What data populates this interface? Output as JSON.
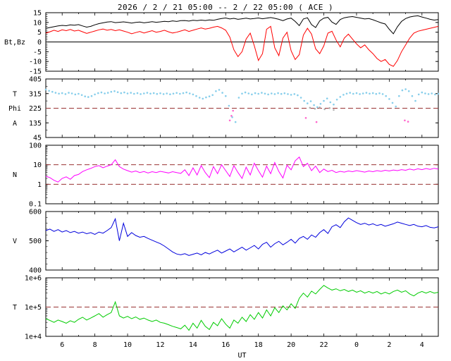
{
  "title": "2026 / 2 / 21  05:00 -- 2 / 22  05:00 ( ACE )",
  "colors": {
    "bt": "#000000",
    "bz": "#ff0000",
    "phi": "#87ceeb",
    "phi_stray": "#ff66cc",
    "phi_gray": "#b0b0b0",
    "density": "#ff00ff",
    "speed": "#0000dd",
    "temp": "#00cc00",
    "dash": "#993333",
    "axis": "#000000"
  },
  "xaxis": {
    "label": "UT",
    "range": [
      5,
      29
    ],
    "ticks": [
      {
        "h": 6,
        "t": "6"
      },
      {
        "h": 8,
        "t": "8"
      },
      {
        "h": 10,
        "t": "10"
      },
      {
        "h": 12,
        "t": "12"
      },
      {
        "h": 14,
        "t": "14"
      },
      {
        "h": 16,
        "t": "16"
      },
      {
        "h": 18,
        "t": "18"
      },
      {
        "h": 20,
        "t": "20"
      },
      {
        "h": 22,
        "t": "22"
      },
      {
        "h": 24,
        "t": "0"
      },
      {
        "h": 26,
        "t": "2"
      },
      {
        "h": 28,
        "t": "4"
      }
    ]
  },
  "chart_data": [
    {
      "name": "bt-bz",
      "type": "line",
      "ylabel": "Bt,Bz",
      "ylim": [
        -15,
        15
      ],
      "log": false,
      "yminor": 1,
      "yticks": [
        {
          "v": 15,
          "t": "15"
        },
        {
          "v": 10,
          "t": "10"
        },
        {
          "v": 5,
          "t": "5"
        },
        {
          "v": 0,
          "t": "0"
        },
        {
          "v": -5,
          "t": "-5"
        },
        {
          "v": -10,
          "t": "-10"
        },
        {
          "v": -15,
          "t": "-15"
        }
      ],
      "captions": [
        {
          "text": "Bt,Bz",
          "v": 0
        }
      ],
      "hlines": [
        {
          "v": 0,
          "dash": false
        }
      ],
      "series": [
        {
          "name": "bt",
          "color": "bt",
          "mode": "line",
          "x0": 5,
          "dx": 0.25,
          "y": [
            7.0,
            7.4,
            7.8,
            8.2,
            8.5,
            8.3,
            8.8,
            8.6,
            8.9,
            8.2,
            7.6,
            8.0,
            8.8,
            9.4,
            9.8,
            10.2,
            10.4,
            9.9,
            10.1,
            10.3,
            10.0,
            9.7,
            10.0,
            10.2,
            9.8,
            10.1,
            10.4,
            10.1,
            10.3,
            10.6,
            10.4,
            10.8,
            10.5,
            10.9,
            11.0,
            10.7,
            11.1,
            10.9,
            11.2,
            11.0,
            11.3,
            11.1,
            11.6,
            12.0,
            12.3,
            11.8,
            12.1,
            11.6,
            11.9,
            12.2,
            11.8,
            12.0,
            12.3,
            11.9,
            12.2,
            12.5,
            12.1,
            11.6,
            10.9,
            11.8,
            12.2,
            10.5,
            8.4,
            11.8,
            12.4,
            8.9,
            7.4,
            10.8,
            12.2,
            12.6,
            10.2,
            9.0,
            11.5,
            12.4,
            12.8,
            13.0,
            12.6,
            12.2,
            11.8,
            12.0,
            11.4,
            10.6,
            9.8,
            9.2,
            6.5,
            4.2,
            7.8,
            10.5,
            12.0,
            12.8,
            13.2,
            13.4,
            12.8,
            12.2,
            11.6,
            11.2,
            11.5
          ]
        },
        {
          "name": "bz",
          "color": "bz",
          "mode": "line",
          "x0": 5,
          "dx": 0.25,
          "y": [
            4.5,
            5.2,
            6.0,
            5.4,
            6.2,
            5.8,
            6.4,
            5.6,
            6.0,
            5.2,
            4.4,
            5.0,
            5.6,
            6.2,
            6.6,
            6.0,
            6.4,
            5.8,
            6.2,
            5.6,
            5.0,
            4.2,
            4.8,
            5.4,
            4.6,
            5.2,
            5.8,
            5.0,
            5.4,
            6.0,
            5.2,
            4.6,
            5.0,
            5.6,
            6.2,
            5.4,
            6.0,
            6.6,
            7.2,
            6.6,
            7.0,
            7.6,
            8.0,
            7.2,
            6.0,
            2.5,
            -4.0,
            -7.5,
            -5.0,
            1.5,
            4.5,
            -2.0,
            -9.5,
            -6.0,
            6.5,
            8.0,
            -3.0,
            -7.0,
            2.0,
            5.0,
            -4.5,
            -9.0,
            -6.5,
            3.5,
            7.0,
            4.0,
            -3.5,
            -6.0,
            -2.0,
            4.5,
            5.5,
            1.0,
            -2.5,
            2.0,
            4.0,
            1.5,
            -1.0,
            -3.0,
            -1.5,
            -4.0,
            -6.0,
            -8.5,
            -10.0,
            -9.0,
            -11.5,
            -12.5,
            -9.5,
            -5.0,
            -1.5,
            2.0,
            4.5,
            5.5,
            6.0,
            6.5,
            7.0,
            7.5,
            8.0
          ]
        }
      ]
    },
    {
      "name": "phi",
      "type": "scatter",
      "ylabel": "Phi",
      "ylim": [
        45,
        405
      ],
      "log": false,
      "yminor": 45,
      "yticks": [
        {
          "v": 405,
          "t": "405"
        },
        {
          "v": 315,
          "t": "315"
        },
        {
          "v": 225,
          "t": "225"
        },
        {
          "v": 135,
          "t": "135"
        },
        {
          "v": 45,
          "t": "45"
        }
      ],
      "captions": [
        {
          "text": "T",
          "v": 315
        },
        {
          "text": "Phi",
          "v": 225
        },
        {
          "text": "A",
          "v": 135
        }
      ],
      "hlines": [
        {
          "v": 225,
          "dash": true
        }
      ],
      "series": [
        {
          "name": "phi-angle",
          "color": "phi",
          "mode": "dots",
          "x0": 5,
          "dx": 0.2,
          "y": [
            340,
            332,
            326,
            320,
            315,
            318,
            312,
            320,
            316,
            310,
            314,
            306,
            298,
            294,
            300,
            310,
            318,
            322,
            316,
            320,
            326,
            330,
            324,
            318,
            322,
            316,
            320,
            314,
            318,
            312,
            316,
            320,
            315,
            318,
            313,
            317,
            312,
            316,
            311,
            315,
            319,
            314,
            318,
            322,
            316,
            310,
            300,
            290,
            284,
            292,
            298,
            306,
            330,
            338,
            320,
            300,
            240,
            170,
            140,
            290,
            315,
            322,
            316,
            310,
            318,
            314,
            320,
            315,
            310,
            316,
            312,
            318,
            313,
            317,
            312,
            308,
            312,
            305,
            290,
            270,
            255,
            268,
            244,
            232,
            252,
            270,
            285,
            262,
            248,
            278,
            295,
            308,
            315,
            320,
            314,
            318,
            312,
            316,
            320,
            315,
            318,
            313,
            317,
            312,
            300,
            282,
            258,
            236,
            300,
            335,
            342,
            330,
            300,
            270,
            310,
            322,
            316,
            312,
            316,
            310,
            314
          ]
        },
        {
          "name": "phi-stray",
          "color": "phi_stray",
          "mode": "points",
          "points": [
            [
              16.25,
              150
            ],
            [
              16.35,
              178
            ],
            [
              16.45,
              210
            ],
            [
              20.9,
              165
            ],
            [
              21.55,
              140
            ],
            [
              26.95,
              150
            ],
            [
              27.15,
              142
            ]
          ]
        },
        {
          "name": "phi-gray",
          "color": "phi_gray",
          "mode": "points",
          "points": [
            [
              21.15,
              228
            ],
            [
              21.45,
              222
            ],
            [
              21.75,
              230
            ],
            [
              22.05,
              219
            ],
            [
              22.35,
              226
            ],
            [
              22.6,
              215
            ]
          ]
        }
      ]
    },
    {
      "name": "density",
      "type": "line",
      "ylabel": "N",
      "ylim": [
        0.1,
        100
      ],
      "log": true,
      "yticks": [
        {
          "v": 100,
          "t": "100"
        },
        {
          "v": 10,
          "t": "10"
        },
        {
          "v": 1,
          "t": "1"
        },
        {
          "v": 0.1,
          "t": "0.1"
        }
      ],
      "captions": [
        {
          "text": "N",
          "v": "center"
        }
      ],
      "hlines": [
        {
          "v": 10,
          "dash": true
        },
        {
          "v": 1,
          "dash": true
        }
      ],
      "series": [
        {
          "name": "proton-density",
          "color": "density",
          "mode": "line",
          "x0": 5,
          "dx": 0.25,
          "y": [
            2.6,
            2.2,
            1.6,
            1.3,
            2.0,
            2.4,
            1.8,
            2.8,
            3.2,
            4.5,
            5.5,
            6.5,
            8.0,
            9.0,
            7.0,
            8.5,
            10.0,
            18.0,
            8.0,
            6.0,
            5.0,
            4.2,
            4.8,
            4.0,
            4.5,
            3.8,
            4.4,
            4.0,
            4.6,
            4.2,
            3.8,
            4.4,
            4.0,
            3.6,
            5.5,
            2.8,
            7.0,
            3.0,
            9.0,
            4.0,
            2.2,
            8.0,
            3.5,
            10.0,
            5.0,
            2.5,
            9.0,
            4.0,
            2.0,
            7.5,
            3.0,
            12.0,
            5.0,
            2.3,
            8.5,
            3.5,
            13.0,
            4.5,
            2.1,
            9.5,
            5.5,
            16.0,
            25.0,
            8.0,
            12.0,
            5.0,
            8.5,
            4.0,
            6.0,
            4.5,
            5.2,
            4.0,
            4.6,
            4.2,
            4.8,
            4.4,
            5.0,
            4.6,
            4.2,
            4.8,
            4.4,
            5.0,
            4.6,
            5.2,
            4.8,
            5.4,
            5.0,
            5.6,
            5.2,
            6.0,
            5.4,
            6.2,
            5.6,
            6.4,
            5.8,
            6.6,
            6.0
          ]
        }
      ]
    },
    {
      "name": "speed",
      "type": "line",
      "ylabel": "V",
      "ylim": [
        400,
        600
      ],
      "log": false,
      "yminor": 20,
      "yticks": [
        {
          "v": 600,
          "t": "600"
        },
        {
          "v": 500,
          "t": "500"
        },
        {
          "v": 400,
          "t": "400"
        }
      ],
      "captions": [
        {
          "text": "V",
          "v": "center"
        }
      ],
      "hlines": [],
      "series": [
        {
          "name": "solar-wind-speed",
          "color": "speed",
          "mode": "line",
          "x0": 5,
          "dx": 0.25,
          "y": [
            535,
            540,
            532,
            538,
            530,
            535,
            528,
            532,
            526,
            530,
            524,
            528,
            522,
            530,
            526,
            535,
            545,
            575,
            500,
            560,
            515,
            528,
            518,
            512,
            515,
            508,
            502,
            496,
            490,
            482,
            472,
            462,
            455,
            452,
            456,
            450,
            454,
            458,
            452,
            460,
            455,
            462,
            468,
            458,
            465,
            472,
            462,
            470,
            478,
            468,
            476,
            484,
            472,
            488,
            495,
            478,
            490,
            498,
            486,
            495,
            505,
            492,
            508,
            515,
            505,
            520,
            512,
            528,
            538,
            525,
            548,
            555,
            545,
            565,
            578,
            570,
            562,
            556,
            560,
            554,
            558,
            552,
            556,
            550,
            554,
            558,
            564,
            560,
            556,
            552,
            556,
            550,
            548,
            552,
            546,
            544,
            548
          ]
        }
      ]
    },
    {
      "name": "temperature",
      "type": "line",
      "ylabel": "T",
      "ylim": [
        10000,
        1000000
      ],
      "log": true,
      "yticks": [
        {
          "v": 1000000,
          "t": "1e+6"
        },
        {
          "v": 100000,
          "t": "1e+5"
        },
        {
          "v": 10000,
          "t": "1e+4"
        }
      ],
      "captions": [
        {
          "text": "T",
          "v": "center"
        }
      ],
      "hlines": [
        {
          "v": 100000,
          "dash": true
        }
      ],
      "series": [
        {
          "name": "proton-temperature",
          "color": "temp",
          "mode": "line",
          "x0": 5,
          "dx": 0.25,
          "scale": 10000,
          "y": [
            4.0,
            3.5,
            3.0,
            3.6,
            3.2,
            2.8,
            3.4,
            3.0,
            3.8,
            4.5,
            3.6,
            4.2,
            5.0,
            6.0,
            4.5,
            5.5,
            6.5,
            15.0,
            5.0,
            4.2,
            4.8,
            4.0,
            4.6,
            3.8,
            4.2,
            3.6,
            3.2,
            3.6,
            3.0,
            2.8,
            2.5,
            2.2,
            2.0,
            1.8,
            2.4,
            1.6,
            2.8,
            1.9,
            3.5,
            2.2,
            1.7,
            3.0,
            2.3,
            4.0,
            2.6,
            1.9,
            3.6,
            2.8,
            4.5,
            3.2,
            5.5,
            3.8,
            6.5,
            4.2,
            8.0,
            5.0,
            9.5,
            6.5,
            11.0,
            8.0,
            13.0,
            9.0,
            20.0,
            30.0,
            22.0,
            35.0,
            28.0,
            40.0,
            55.0,
            45.0,
            38.0,
            42.0,
            36.0,
            40.0,
            34.0,
            38.0,
            32.0,
            36.0,
            30.0,
            34.0,
            30.0,
            34.0,
            28.0,
            32.0,
            28.0,
            34.0,
            38.0,
            32.0,
            36.0,
            28.0,
            24.0,
            30.0,
            34.0,
            30.0,
            34.0,
            30.0,
            32.0
          ]
        }
      ]
    }
  ]
}
